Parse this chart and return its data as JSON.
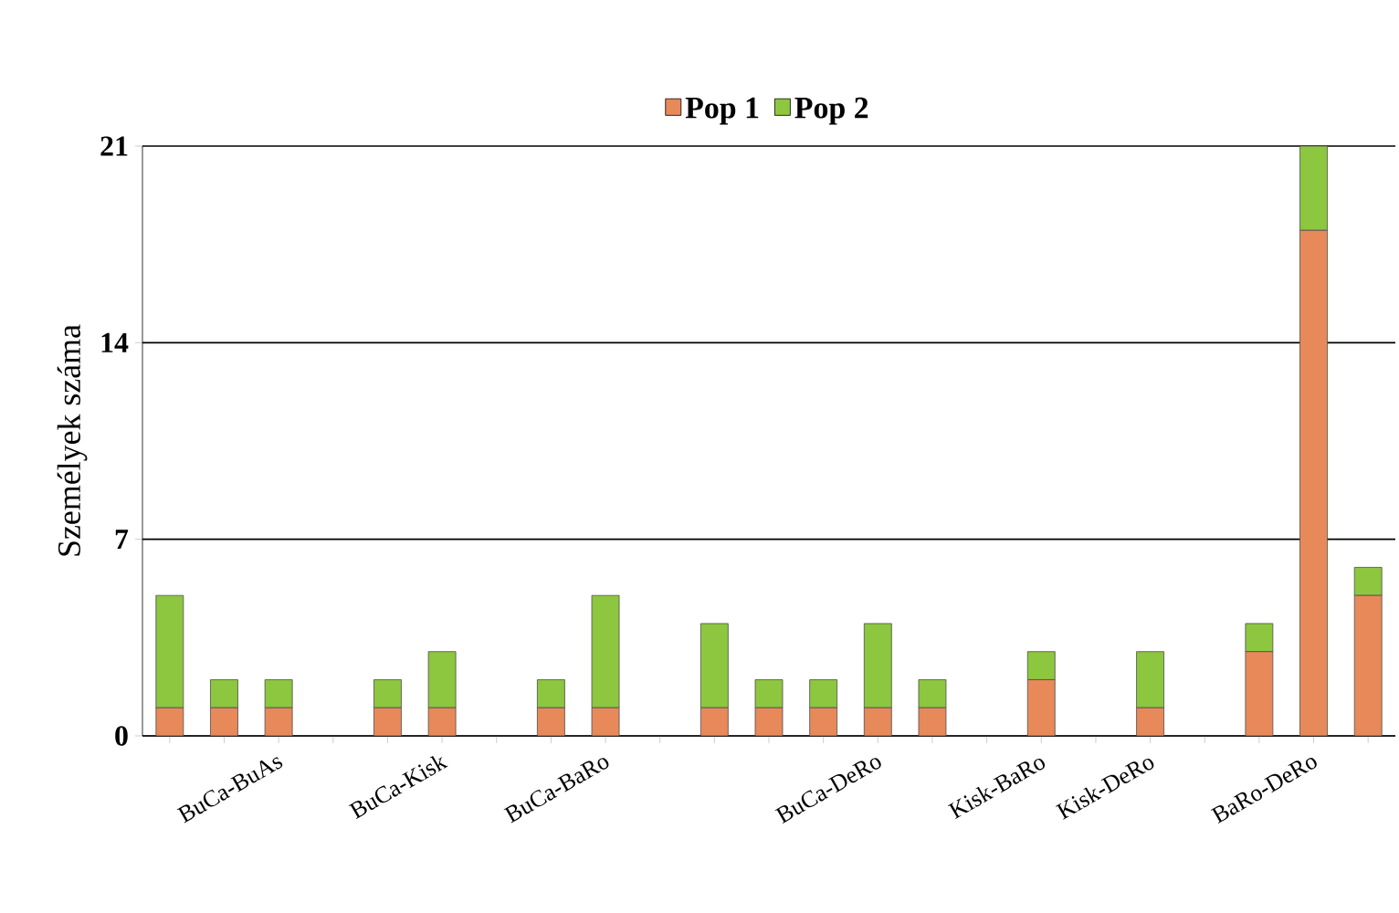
{
  "chart_data": {
    "type": "bar",
    "stacked": true,
    "ylabel": "Személyek száma",
    "categories": [
      null,
      null,
      "BuCa-BuAs",
      null,
      null,
      "BuCa-Kisk",
      null,
      null,
      "BuCa-BaRo",
      null,
      null,
      null,
      null,
      "BuCa-DeRo",
      null,
      null,
      "Kisk-BaRo",
      null,
      "Kisk-DeRo",
      null,
      null,
      "BaRo-DeRo",
      null
    ],
    "series": [
      {
        "name": "Pop 1",
        "color": "#e8895a",
        "values": [
          1,
          1,
          1,
          null,
          1,
          1,
          null,
          1,
          1,
          null,
          1,
          1,
          1,
          1,
          1,
          null,
          2,
          null,
          1,
          null,
          3,
          18,
          5
        ]
      },
      {
        "name": "Pop 2",
        "color": "#8dc63f",
        "values": [
          4,
          1,
          1,
          null,
          1,
          2,
          null,
          1,
          4,
          null,
          3,
          1,
          1,
          3,
          1,
          null,
          1,
          null,
          2,
          null,
          1,
          3,
          1
        ]
      }
    ],
    "ylim": [
      0,
      21
    ],
    "yticks": [
      0,
      7,
      14,
      21
    ],
    "grid": "y",
    "legend": "top"
  }
}
